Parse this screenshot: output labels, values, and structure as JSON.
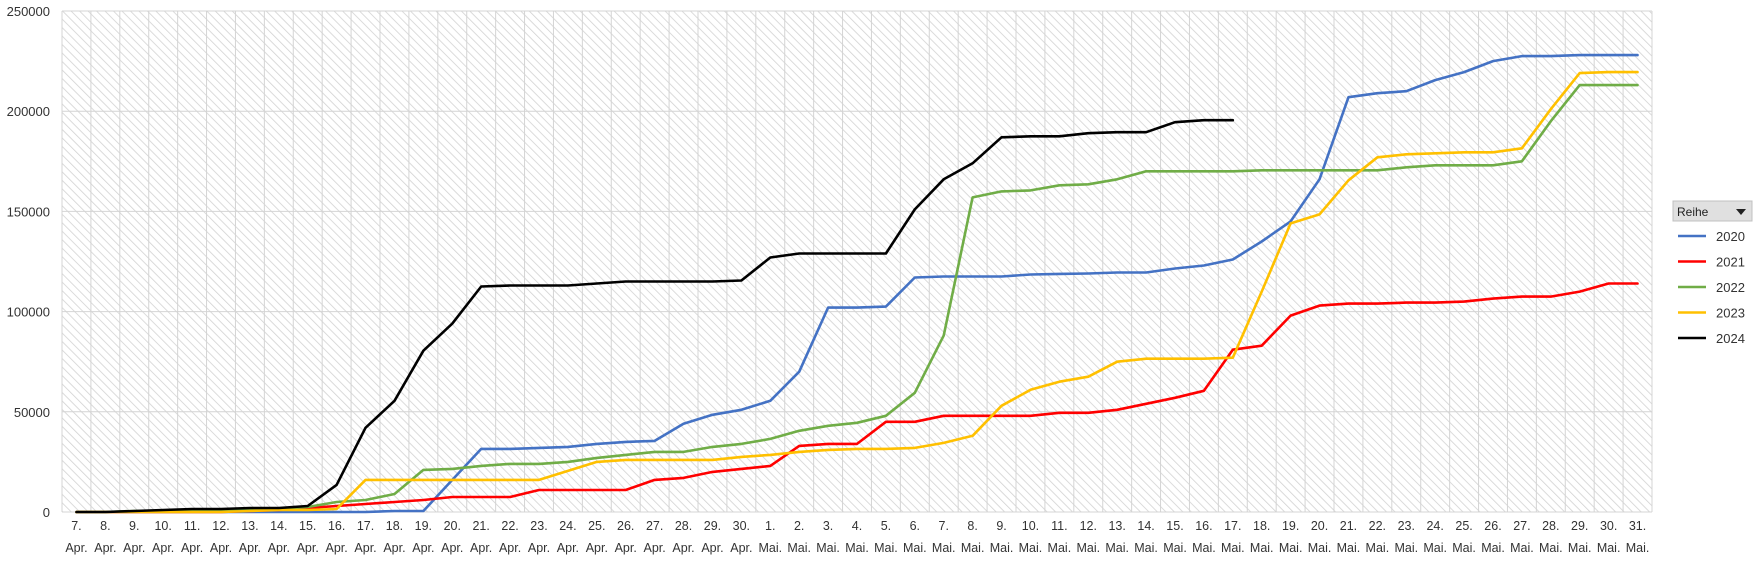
{
  "chart_data": {
    "type": "line",
    "categories": [
      [
        "7.",
        "Apr."
      ],
      [
        "8.",
        "Apr."
      ],
      [
        "9.",
        "Apr."
      ],
      [
        "10.",
        "Apr."
      ],
      [
        "11.",
        "Apr."
      ],
      [
        "12.",
        "Apr."
      ],
      [
        "13.",
        "Apr."
      ],
      [
        "14.",
        "Apr."
      ],
      [
        "15.",
        "Apr."
      ],
      [
        "16.",
        "Apr."
      ],
      [
        "17.",
        "Apr."
      ],
      [
        "18.",
        "Apr."
      ],
      [
        "19.",
        "Apr."
      ],
      [
        "20.",
        "Apr."
      ],
      [
        "21.",
        "Apr."
      ],
      [
        "22.",
        "Apr."
      ],
      [
        "23.",
        "Apr."
      ],
      [
        "24.",
        "Apr."
      ],
      [
        "25.",
        "Apr."
      ],
      [
        "26.",
        "Apr."
      ],
      [
        "27.",
        "Apr."
      ],
      [
        "28.",
        "Apr."
      ],
      [
        "29.",
        "Apr."
      ],
      [
        "30.",
        "Apr."
      ],
      [
        "1.",
        "Mai."
      ],
      [
        "2.",
        "Mai."
      ],
      [
        "3.",
        "Mai."
      ],
      [
        "4.",
        "Mai."
      ],
      [
        "5.",
        "Mai."
      ],
      [
        "6.",
        "Mai."
      ],
      [
        "7.",
        "Mai."
      ],
      [
        "8.",
        "Mai."
      ],
      [
        "9.",
        "Mai."
      ],
      [
        "10.",
        "Mai."
      ],
      [
        "11.",
        "Mai."
      ],
      [
        "12.",
        "Mai."
      ],
      [
        "13.",
        "Mai."
      ],
      [
        "14.",
        "Mai."
      ],
      [
        "15.",
        "Mai."
      ],
      [
        "16.",
        "Mai."
      ],
      [
        "17.",
        "Mai."
      ],
      [
        "18.",
        "Mai."
      ],
      [
        "19.",
        "Mai."
      ],
      [
        "20.",
        "Mai."
      ],
      [
        "21.",
        "Mai."
      ],
      [
        "22.",
        "Mai."
      ],
      [
        "23.",
        "Mai."
      ],
      [
        "24.",
        "Mai."
      ],
      [
        "25.",
        "Mai."
      ],
      [
        "26.",
        "Mai."
      ],
      [
        "27.",
        "Mai."
      ],
      [
        "28.",
        "Mai."
      ],
      [
        "29.",
        "Mai."
      ],
      [
        "30.",
        "Mai."
      ],
      [
        "31.",
        "Mai."
      ]
    ],
    "ylim": [
      0,
      250000
    ],
    "yticks": [
      "0",
      "50000",
      "100000",
      "150000",
      "200000",
      "250000"
    ],
    "grid": true,
    "legend": {
      "title": "Reihe",
      "placement": "right"
    },
    "series": [
      {
        "name": "2020",
        "color": "#4472C4",
        "values": [
          0,
          0,
          0,
          0,
          0,
          0,
          0,
          0,
          0,
          0,
          0,
          500,
          500,
          16000,
          31500,
          31500,
          32000,
          32500,
          34000,
          35000,
          35500,
          44000,
          48500,
          51000,
          55500,
          70000,
          102000,
          102000,
          102500,
          117000,
          117500,
          117500,
          117500,
          118500,
          118800,
          119000,
          119500,
          119500,
          121500,
          123000,
          126000,
          135000,
          145000,
          166000,
          207000,
          209000,
          210000,
          215500,
          219500,
          225000,
          227500,
          227500,
          228000,
          228000,
          228000
        ]
      },
      {
        "name": "2021",
        "color": "#FF0000",
        "values": [
          0,
          0,
          0,
          0,
          0,
          0,
          500,
          1000,
          2000,
          3000,
          4000,
          5000,
          6000,
          7500,
          7500,
          7500,
          11000,
          11000,
          11000,
          11000,
          16000,
          17000,
          20000,
          21500,
          23000,
          33000,
          34000,
          34000,
          45000,
          45000,
          48000,
          48000,
          48000,
          48000,
          49500,
          49500,
          51000,
          54000,
          57000,
          60500,
          81000,
          83000,
          98000,
          103000,
          104000,
          104000,
          104500,
          104500,
          105000,
          106500,
          107500,
          107500,
          110000,
          114000,
          114000
        ]
      },
      {
        "name": "2022",
        "color": "#70AD47",
        "values": [
          0,
          0,
          500,
          500,
          500,
          500,
          1000,
          1500,
          2500,
          5000,
          6000,
          9000,
          21000,
          21500,
          23000,
          24000,
          24000,
          25000,
          27000,
          28500,
          30000,
          30000,
          32500,
          34000,
          36500,
          40500,
          43000,
          44500,
          48000,
          59500,
          88000,
          157000,
          160000,
          160500,
          163000,
          163500,
          166000,
          170000,
          170000,
          170000,
          170000,
          170500,
          170500,
          170500,
          170500,
          170500,
          172000,
          173000,
          173000,
          173000,
          175000,
          195000,
          213000,
          213000,
          213000
        ]
      },
      {
        "name": "2023",
        "color": "#FFC000",
        "values": [
          0,
          0,
          0,
          0,
          0,
          0,
          500,
          1000,
          1000,
          1500,
          16000,
          16000,
          16000,
          16000,
          16000,
          16000,
          16000,
          20500,
          25000,
          26000,
          26000,
          26000,
          26000,
          27500,
          28500,
          30000,
          31000,
          31500,
          31500,
          32000,
          34500,
          38000,
          53000,
          61000,
          65000,
          67500,
          75000,
          76500,
          76500,
          76500,
          77000,
          110000,
          144000,
          148500,
          165500,
          177000,
          178500,
          179000,
          179500,
          179500,
          181500,
          201000,
          219000,
          219500,
          219500
        ]
      },
      {
        "name": "2024",
        "color": "#000000",
        "values": [
          0,
          0,
          500,
          1000,
          1500,
          1500,
          2000,
          2000,
          3000,
          13500,
          42000,
          55500,
          80500,
          94000,
          112500,
          113000,
          113000,
          113000,
          114000,
          115000,
          115000,
          115000,
          115000,
          115500,
          127000,
          129000,
          129000,
          129000,
          129000,
          151000,
          166000,
          174000,
          187000,
          187500,
          187500,
          189000,
          189500,
          189500,
          194500,
          195500,
          195500,
          null,
          null,
          null,
          null,
          null,
          null,
          null,
          null,
          null,
          null,
          null,
          null,
          null,
          null
        ]
      }
    ]
  }
}
